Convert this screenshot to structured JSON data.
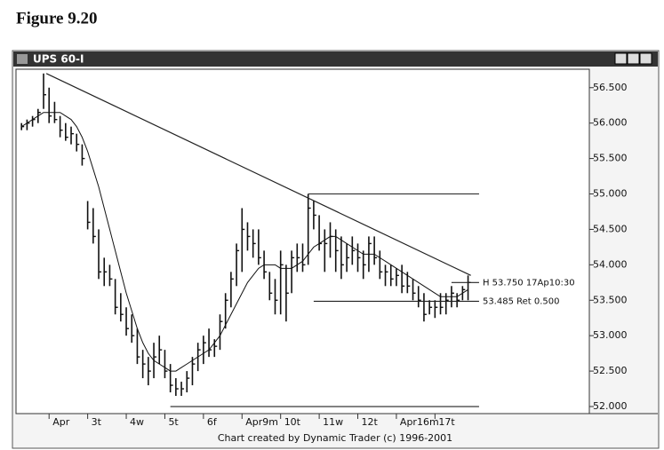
{
  "figure_label": "Figure 9.20",
  "window_title": "UPS 60-I",
  "chart_data": {
    "type": "ohlc",
    "footer": "Chart created by Dynamic Trader (c) 1996-2001",
    "x": [
      0,
      1,
      2,
      3,
      4,
      5,
      6,
      7,
      8,
      9,
      10,
      11,
      12,
      13,
      14,
      15,
      16,
      17,
      18,
      19,
      20,
      21,
      22,
      23,
      24,
      25,
      26,
      27,
      28,
      29,
      30,
      31,
      32,
      33,
      34,
      35,
      36,
      37,
      38,
      39,
      40,
      41,
      42,
      43,
      44,
      45,
      46,
      47,
      48,
      49,
      50,
      51,
      52,
      53,
      54,
      55,
      56,
      57,
      58,
      59,
      60,
      61,
      62,
      63,
      64,
      65,
      66,
      67,
      68,
      69,
      70,
      71,
      72,
      73,
      74,
      75,
      76,
      77,
      78,
      79,
      80,
      81
    ],
    "high": [
      56.0,
      56.05,
      56.1,
      56.2,
      56.7,
      56.5,
      56.3,
      56.1,
      56.0,
      55.95,
      55.85,
      55.7,
      54.9,
      54.8,
      54.5,
      54.1,
      54.0,
      53.8,
      53.6,
      53.4,
      53.3,
      53.1,
      52.8,
      52.7,
      52.9,
      53.0,
      52.8,
      52.6,
      52.4,
      52.35,
      52.5,
      52.7,
      52.9,
      53.0,
      53.1,
      52.95,
      53.3,
      53.6,
      53.9,
      54.3,
      54.8,
      54.6,
      54.5,
      54.5,
      54.2,
      53.9,
      53.8,
      54.2,
      54.0,
      54.2,
      54.3,
      54.3,
      55.0,
      54.9,
      54.7,
      54.5,
      54.6,
      54.5,
      54.4,
      54.3,
      54.4,
      54.3,
      54.2,
      54.4,
      54.4,
      54.2,
      54.0,
      54.0,
      53.95,
      54.0,
      53.9,
      53.8,
      53.7,
      53.6,
      53.5,
      53.5,
      53.6,
      53.6,
      53.7,
      53.6,
      53.7,
      53.85
    ],
    "low": [
      55.9,
      55.9,
      55.95,
      56.0,
      56.2,
      56.0,
      56.0,
      55.8,
      55.75,
      55.7,
      55.6,
      55.4,
      54.5,
      54.3,
      53.8,
      53.7,
      53.7,
      53.3,
      53.2,
      53.0,
      52.9,
      52.6,
      52.4,
      52.3,
      52.4,
      52.6,
      52.4,
      52.2,
      52.15,
      52.15,
      52.2,
      52.3,
      52.5,
      52.6,
      52.7,
      52.7,
      52.8,
      53.1,
      53.4,
      53.7,
      53.9,
      54.2,
      54.1,
      54.0,
      53.8,
      53.5,
      53.3,
      53.3,
      53.2,
      53.6,
      53.9,
      53.9,
      54.0,
      54.5,
      54.2,
      53.9,
      54.1,
      53.9,
      53.8,
      53.9,
      54.0,
      53.9,
      53.8,
      53.9,
      54.0,
      53.8,
      53.7,
      53.7,
      53.7,
      53.6,
      53.6,
      53.5,
      53.4,
      53.2,
      53.3,
      53.25,
      53.3,
      53.3,
      53.4,
      53.4,
      53.5,
      53.5
    ],
    "close": [
      55.95,
      56.0,
      56.05,
      56.15,
      56.4,
      56.1,
      56.05,
      55.9,
      55.8,
      55.85,
      55.7,
      55.5,
      54.6,
      54.4,
      53.9,
      53.9,
      53.8,
      53.4,
      53.3,
      53.1,
      53.0,
      52.7,
      52.6,
      52.5,
      52.7,
      52.8,
      52.5,
      52.3,
      52.25,
      52.25,
      52.4,
      52.6,
      52.8,
      52.9,
      52.8,
      52.85,
      53.2,
      53.5,
      53.8,
      54.2,
      54.5,
      54.4,
      54.3,
      54.1,
      53.9,
      53.6,
      53.5,
      54.0,
      53.6,
      54.1,
      54.1,
      54.0,
      54.8,
      54.7,
      54.3,
      54.3,
      54.4,
      54.2,
      54.0,
      54.1,
      54.2,
      54.1,
      54.0,
      54.3,
      54.1,
      53.9,
      53.9,
      53.8,
      53.85,
      53.7,
      53.7,
      53.6,
      53.5,
      53.3,
      53.4,
      53.4,
      53.4,
      53.5,
      53.6,
      53.5,
      53.65,
      53.75
    ],
    "ma": [
      55.95,
      56.0,
      56.05,
      56.1,
      56.15,
      56.15,
      56.15,
      56.15,
      56.1,
      56.05,
      55.95,
      55.8,
      55.6,
      55.35,
      55.1,
      54.8,
      54.5,
      54.2,
      53.9,
      53.6,
      53.35,
      53.1,
      52.9,
      52.75,
      52.65,
      52.6,
      52.55,
      52.5,
      52.5,
      52.55,
      52.6,
      52.65,
      52.7,
      52.75,
      52.8,
      52.9,
      53.0,
      53.15,
      53.3,
      53.45,
      53.6,
      53.75,
      53.85,
      53.95,
      54.0,
      54.0,
      54.0,
      53.95,
      53.95,
      53.95,
      54.0,
      54.05,
      54.15,
      54.25,
      54.3,
      54.35,
      54.4,
      54.4,
      54.35,
      54.3,
      54.25,
      54.2,
      54.15,
      54.15,
      54.15,
      54.1,
      54.05,
      54.0,
      53.95,
      53.9,
      53.85,
      53.8,
      53.75,
      53.7,
      53.65,
      53.6,
      53.55,
      53.55,
      53.55,
      53.55,
      53.6,
      53.65
    ],
    "trendline": {
      "x": [
        4.5,
        81.5
      ],
      "y": [
        56.7,
        53.85
      ]
    },
    "levels": [
      {
        "value": 55.0,
        "x": [
          52,
          83
        ]
      },
      {
        "value": 52.0,
        "x": [
          27,
          83
        ]
      },
      {
        "value": 53.485,
        "x": [
          53,
          83
        ],
        "label": "53.485 Ret 0.500"
      },
      {
        "value": 53.75,
        "x": [
          78,
          83
        ],
        "label": "H 53.750 17Ap10:30"
      }
    ],
    "xlim": [
      -1,
      103
    ],
    "ylim": [
      51.9,
      56.76
    ],
    "xticks": [
      {
        "value": 5,
        "label": "Apr"
      },
      {
        "value": 12,
        "label": "3t"
      },
      {
        "value": 19,
        "label": "4w"
      },
      {
        "value": 26,
        "label": "5t"
      },
      {
        "value": 33,
        "label": "6f"
      },
      {
        "value": 40,
        "label": "Apr9m"
      },
      {
        "value": 47,
        "label": "10t"
      },
      {
        "value": 54,
        "label": "11w"
      },
      {
        "value": 61,
        "label": "12t"
      },
      {
        "value": 68,
        "label": "Apr16m"
      },
      {
        "value": 75,
        "label": "17t"
      }
    ],
    "yticks": [
      {
        "value": 52.0,
        "label": "52.000"
      },
      {
        "value": 52.5,
        "label": "52.500"
      },
      {
        "value": 53.0,
        "label": "53.000"
      },
      {
        "value": 53.5,
        "label": "53.500"
      },
      {
        "value": 54.0,
        "label": "54.000"
      },
      {
        "value": 54.5,
        "label": "54.500"
      },
      {
        "value": 55.0,
        "label": "55.000"
      },
      {
        "value": 55.5,
        "label": "55.500"
      },
      {
        "value": 56.0,
        "label": "56.000"
      },
      {
        "value": 56.5,
        "label": "56.500"
      }
    ],
    "color": "#111111"
  }
}
